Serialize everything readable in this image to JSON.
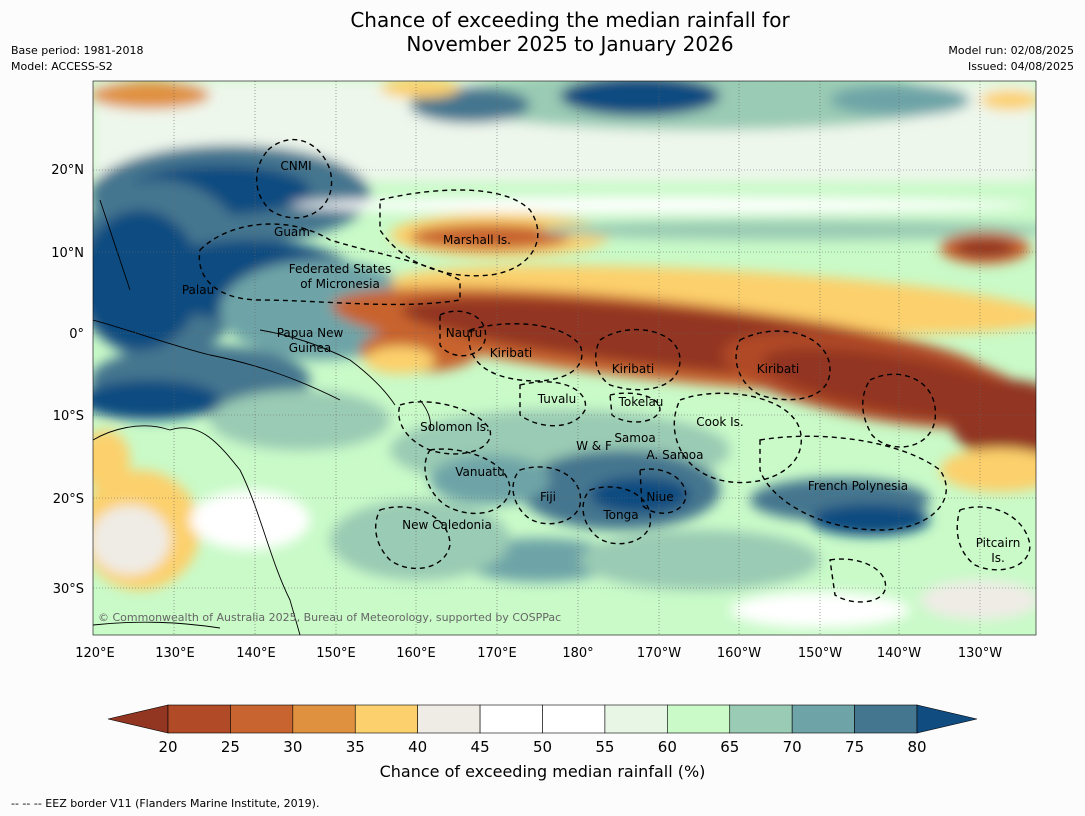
{
  "title_line1": "Chance of exceeding the median rainfall for",
  "title_line2": "November 2025 to January 2026",
  "meta_left": [
    "Base period: 1981-2018",
    "Model: ACCESS-S2"
  ],
  "meta_right": [
    "Model run: 02/08/2025",
    "Issued: 04/08/2025"
  ],
  "map": {
    "lon_labels": [
      "120°E",
      "130°E",
      "140°E",
      "150°E",
      "160°E",
      "170°E",
      "180°",
      "170°W",
      "160°W",
      "150°W",
      "140°W",
      "130°W"
    ],
    "lat_labels": [
      "20°N",
      "10°N",
      "0°",
      "10°S",
      "20°S",
      "30°S"
    ],
    "places": [
      {
        "name": "CNMI"
      },
      {
        "name": "Guam"
      },
      {
        "name": "Marshall Is."
      },
      {
        "name": "Federated States"
      },
      {
        "name": "of Micronesia"
      },
      {
        "name": "Palau"
      },
      {
        "name": "Papua New"
      },
      {
        "name": "Guinea"
      },
      {
        "name": "Nauru"
      },
      {
        "name": "Kiribati"
      },
      {
        "name": "Kiribati"
      },
      {
        "name": "Kiribati"
      },
      {
        "name": "Tuvalu"
      },
      {
        "name": "Tokelau"
      },
      {
        "name": "Cook Is."
      },
      {
        "name": "Solomon Is."
      },
      {
        "name": "W & F"
      },
      {
        "name": "Samoa"
      },
      {
        "name": "A. Samoa"
      },
      {
        "name": "Vanuatu"
      },
      {
        "name": "Fiji"
      },
      {
        "name": "Niue"
      },
      {
        "name": "Tonga"
      },
      {
        "name": "French Polynesia"
      },
      {
        "name": "New Caledonia"
      },
      {
        "name": "Pitcairn"
      },
      {
        "name": "Is."
      }
    ],
    "copyright": "© Commonwealth of Australia 2025, Bureau of Meteorology, supported by COSPPac"
  },
  "colorbar": {
    "ticks": [
      "20",
      "25",
      "30",
      "35",
      "40",
      "45",
      "50",
      "55",
      "60",
      "65",
      "70",
      "75",
      "80"
    ],
    "under_color": "#923621",
    "colors": [
      "#b04a27",
      "#c8642f",
      "#e0913f",
      "#fcd06c",
      "#efece6",
      "#ffffff",
      "#ffffff",
      "#e8f6e6",
      "#c9fac8",
      "#9acbb4",
      "#6ea4a7",
      "#45768f"
    ],
    "over_color": "#114c80",
    "label": "Chance of exceeding median rainfall (%)"
  },
  "footer": "--  --  -- EEZ border V11 (Flanders Marine Institute, 2019)."
}
